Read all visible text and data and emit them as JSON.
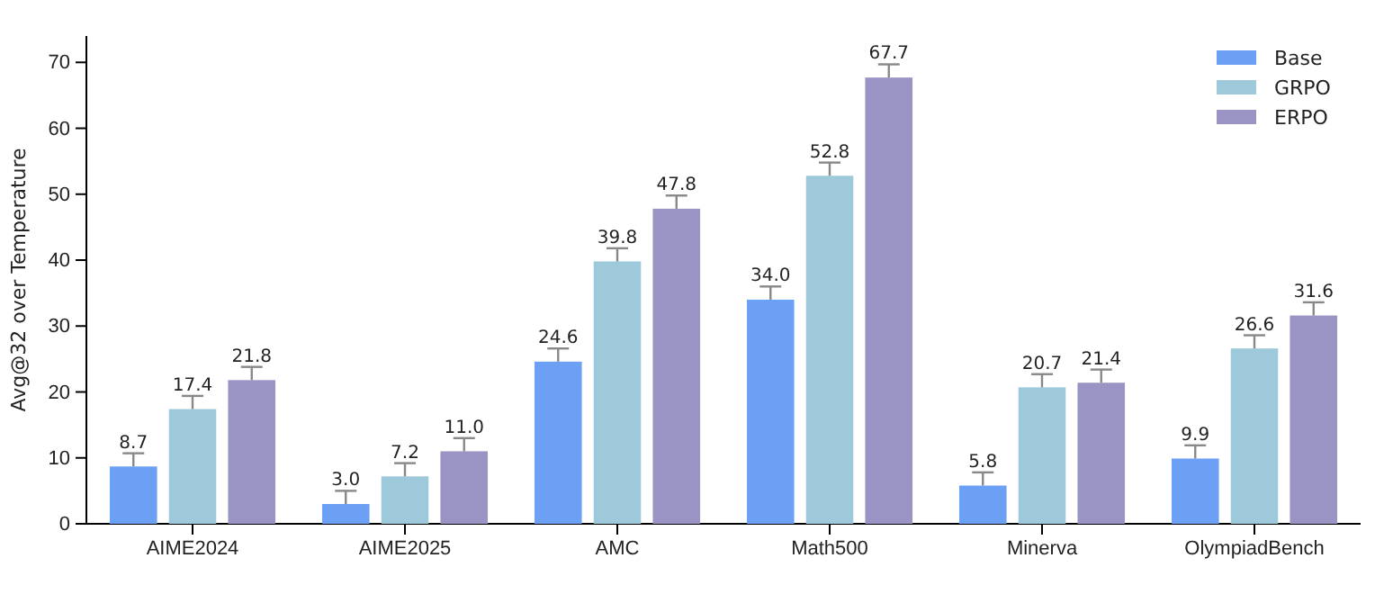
{
  "chart_data": {
    "type": "bar",
    "ylabel": "Avg@32 over Temperature",
    "categories": [
      "AIME2024",
      "AIME2025",
      "AMC",
      "Math500",
      "Minerva",
      "OlympiadBench"
    ],
    "series": [
      {
        "name": "Base",
        "color": "#6ca0f5",
        "values": [
          8.7,
          3.0,
          24.6,
          34.0,
          5.8,
          9.9
        ],
        "value_labels": [
          "8.7",
          "3.0",
          "24.6",
          "34.0",
          "5.8",
          "9.9"
        ],
        "errors": [
          [
            8.7,
            10.7
          ],
          [
            3.0,
            5.0
          ],
          [
            24.6,
            26.6
          ],
          [
            34.0,
            36.0
          ],
          [
            5.8,
            7.8
          ],
          [
            9.9,
            11.9
          ]
        ]
      },
      {
        "name": "GRPO",
        "color": "#9dc9da",
        "values": [
          17.4,
          7.2,
          39.8,
          52.8,
          20.7,
          26.6
        ],
        "value_labels": [
          "17.4",
          "7.2",
          "39.8",
          "52.8",
          "20.7",
          "26.6"
        ],
        "errors": [
          [
            17.4,
            19.4
          ],
          [
            7.2,
            9.2
          ],
          [
            39.8,
            41.8
          ],
          [
            52.8,
            54.8
          ],
          [
            20.7,
            22.7
          ],
          [
            26.6,
            28.6
          ]
        ]
      },
      {
        "name": "ERPO",
        "color": "#9994c4",
        "values": [
          21.8,
          11.0,
          47.8,
          67.7,
          21.4,
          31.6
        ],
        "value_labels": [
          "21.8",
          "11.0",
          "47.8",
          "67.7",
          "21.4",
          "31.6"
        ],
        "errors": [
          [
            21.8,
            23.8
          ],
          [
            11.0,
            13.0
          ],
          [
            47.8,
            49.8
          ],
          [
            67.7,
            69.7
          ],
          [
            21.4,
            23.4
          ],
          [
            31.6,
            33.6
          ]
        ]
      }
    ],
    "ylim": [
      0,
      74
    ],
    "yticks": [
      0,
      10,
      20,
      30,
      40,
      50,
      60,
      70
    ],
    "legend": "top right",
    "grid": false
  }
}
